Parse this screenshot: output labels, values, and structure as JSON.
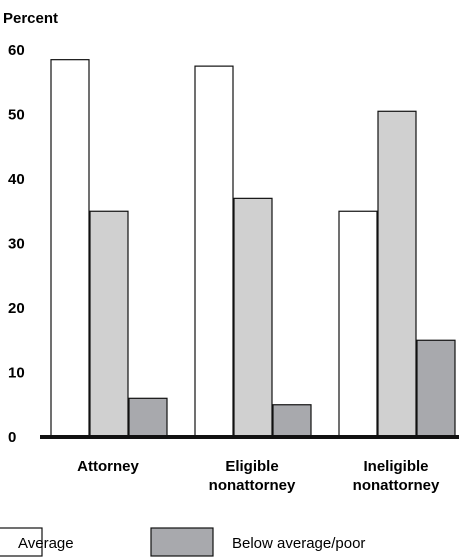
{
  "chart_data": {
    "type": "bar",
    "ylabel": "Percent",
    "ylim": [
      0,
      60
    ],
    "yticks": [
      "0",
      "10",
      "20",
      "30",
      "40",
      "50",
      "60"
    ],
    "grid": false,
    "categories": [
      [
        "Attorney"
      ],
      [
        "Eligible",
        "nonattorney"
      ],
      [
        "Ineligible",
        "nonattorney"
      ]
    ],
    "series": [
      {
        "name": "Average",
        "color": "#ffffff",
        "values": [
          58.5,
          57.5,
          35
        ]
      },
      {
        "name": "",
        "color": "#d0d0d0",
        "values": [
          35,
          37,
          50.5
        ]
      },
      {
        "name": "Below average/poor",
        "color": "#a8a9ad",
        "values": [
          6,
          5,
          15
        ]
      }
    ],
    "legend_placement": "bottom"
  }
}
